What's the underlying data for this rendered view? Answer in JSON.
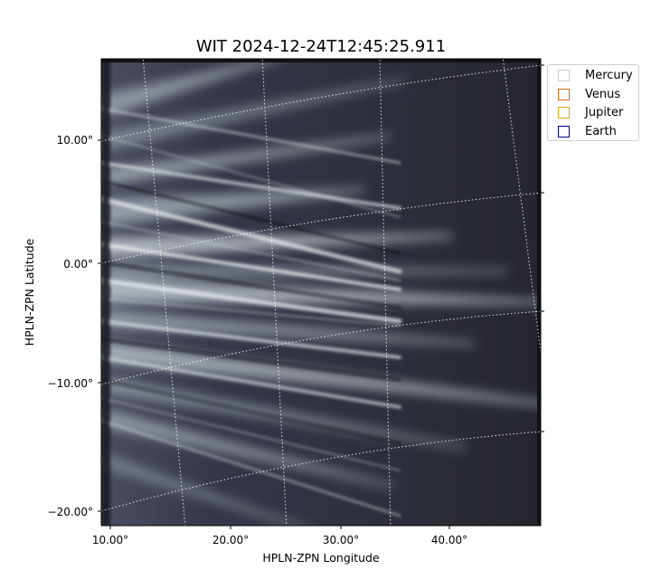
{
  "chart_data": {
    "type": "heatmap",
    "title": "WIT 2024-12-24T12:45:25.911",
    "xlabel": "HPLN-ZPN Longitude",
    "ylabel": "HPLN-ZPN Latitude",
    "x_tick_labels": [
      "10.00°",
      "20.00°",
      "30.00°",
      "40.00°"
    ],
    "y_tick_labels": [
      "10.00°",
      "0.00°",
      "−10.00°",
      "−20.00°"
    ],
    "xlim": [
      9.4,
      47.8
    ],
    "ylim": [
      -21.0,
      16.8
    ],
    "grid": true,
    "colormap": "bone",
    "legend_placement": "outside-top-right",
    "legend": [
      {
        "name": "Mercury",
        "color": "#cccccc"
      },
      {
        "name": "Venus",
        "color": "#d2691e"
      },
      {
        "name": "Jupiter",
        "color": "#daa520"
      },
      {
        "name": "Earth",
        "color": "#000080"
      }
    ]
  }
}
